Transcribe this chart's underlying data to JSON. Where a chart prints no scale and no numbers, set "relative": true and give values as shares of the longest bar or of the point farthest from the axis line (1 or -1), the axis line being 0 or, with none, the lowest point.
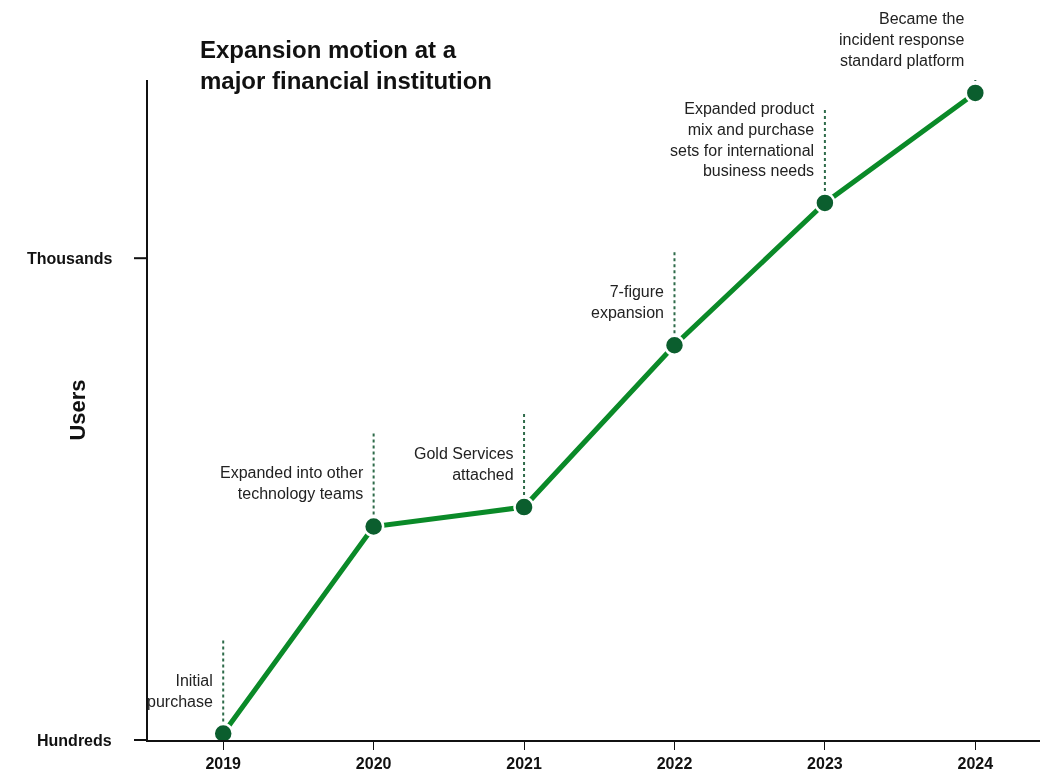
{
  "chart_data": {
    "type": "line",
    "title": "Expansion motion at a\nmajor financial institution",
    "ylabel": "Users",
    "categories": [
      "2019",
      "2020",
      "2021",
      "2022",
      "2023",
      "2024"
    ],
    "series": [
      {
        "color": "#0a8a28",
        "colors": [
          "#0b5e2e",
          "#0b5e2e",
          "#0b5e2e",
          "#0b5e2e",
          "#0b5e2e",
          "#0b5e2e"
        ],
        "values": [
          0.01,
          0.33,
          0.36,
          0.61,
          0.83,
          1
        ]
      }
    ],
    "relative": true,
    "annotations": [
      "Hundreds",
      "Thousands",
      {
        "text": "Initial\npurchase",
        "x": "2019",
        "y": 0.01
      },
      {
        "text": "Expanded into other\ntechnology teams",
        "x": "2020",
        "y": 0.33
      },
      {
        "text": "Gold Services\nattached",
        "x": "2021",
        "y": 0.36
      },
      {
        "text": "7-figure\nexpansion",
        "x": "2022",
        "y": 0.61
      },
      {
        "text": "Expanded product\nmix and purchase\nsets for international\nbusiness needs",
        "x": "2023",
        "y": 0.83
      },
      {
        "text": "Became the\nincident response\nstandard platform",
        "x": "2024",
        "y": 1
      }
    ],
    "grid": false,
    "marker": "circle",
    "line_style": "solid"
  }
}
